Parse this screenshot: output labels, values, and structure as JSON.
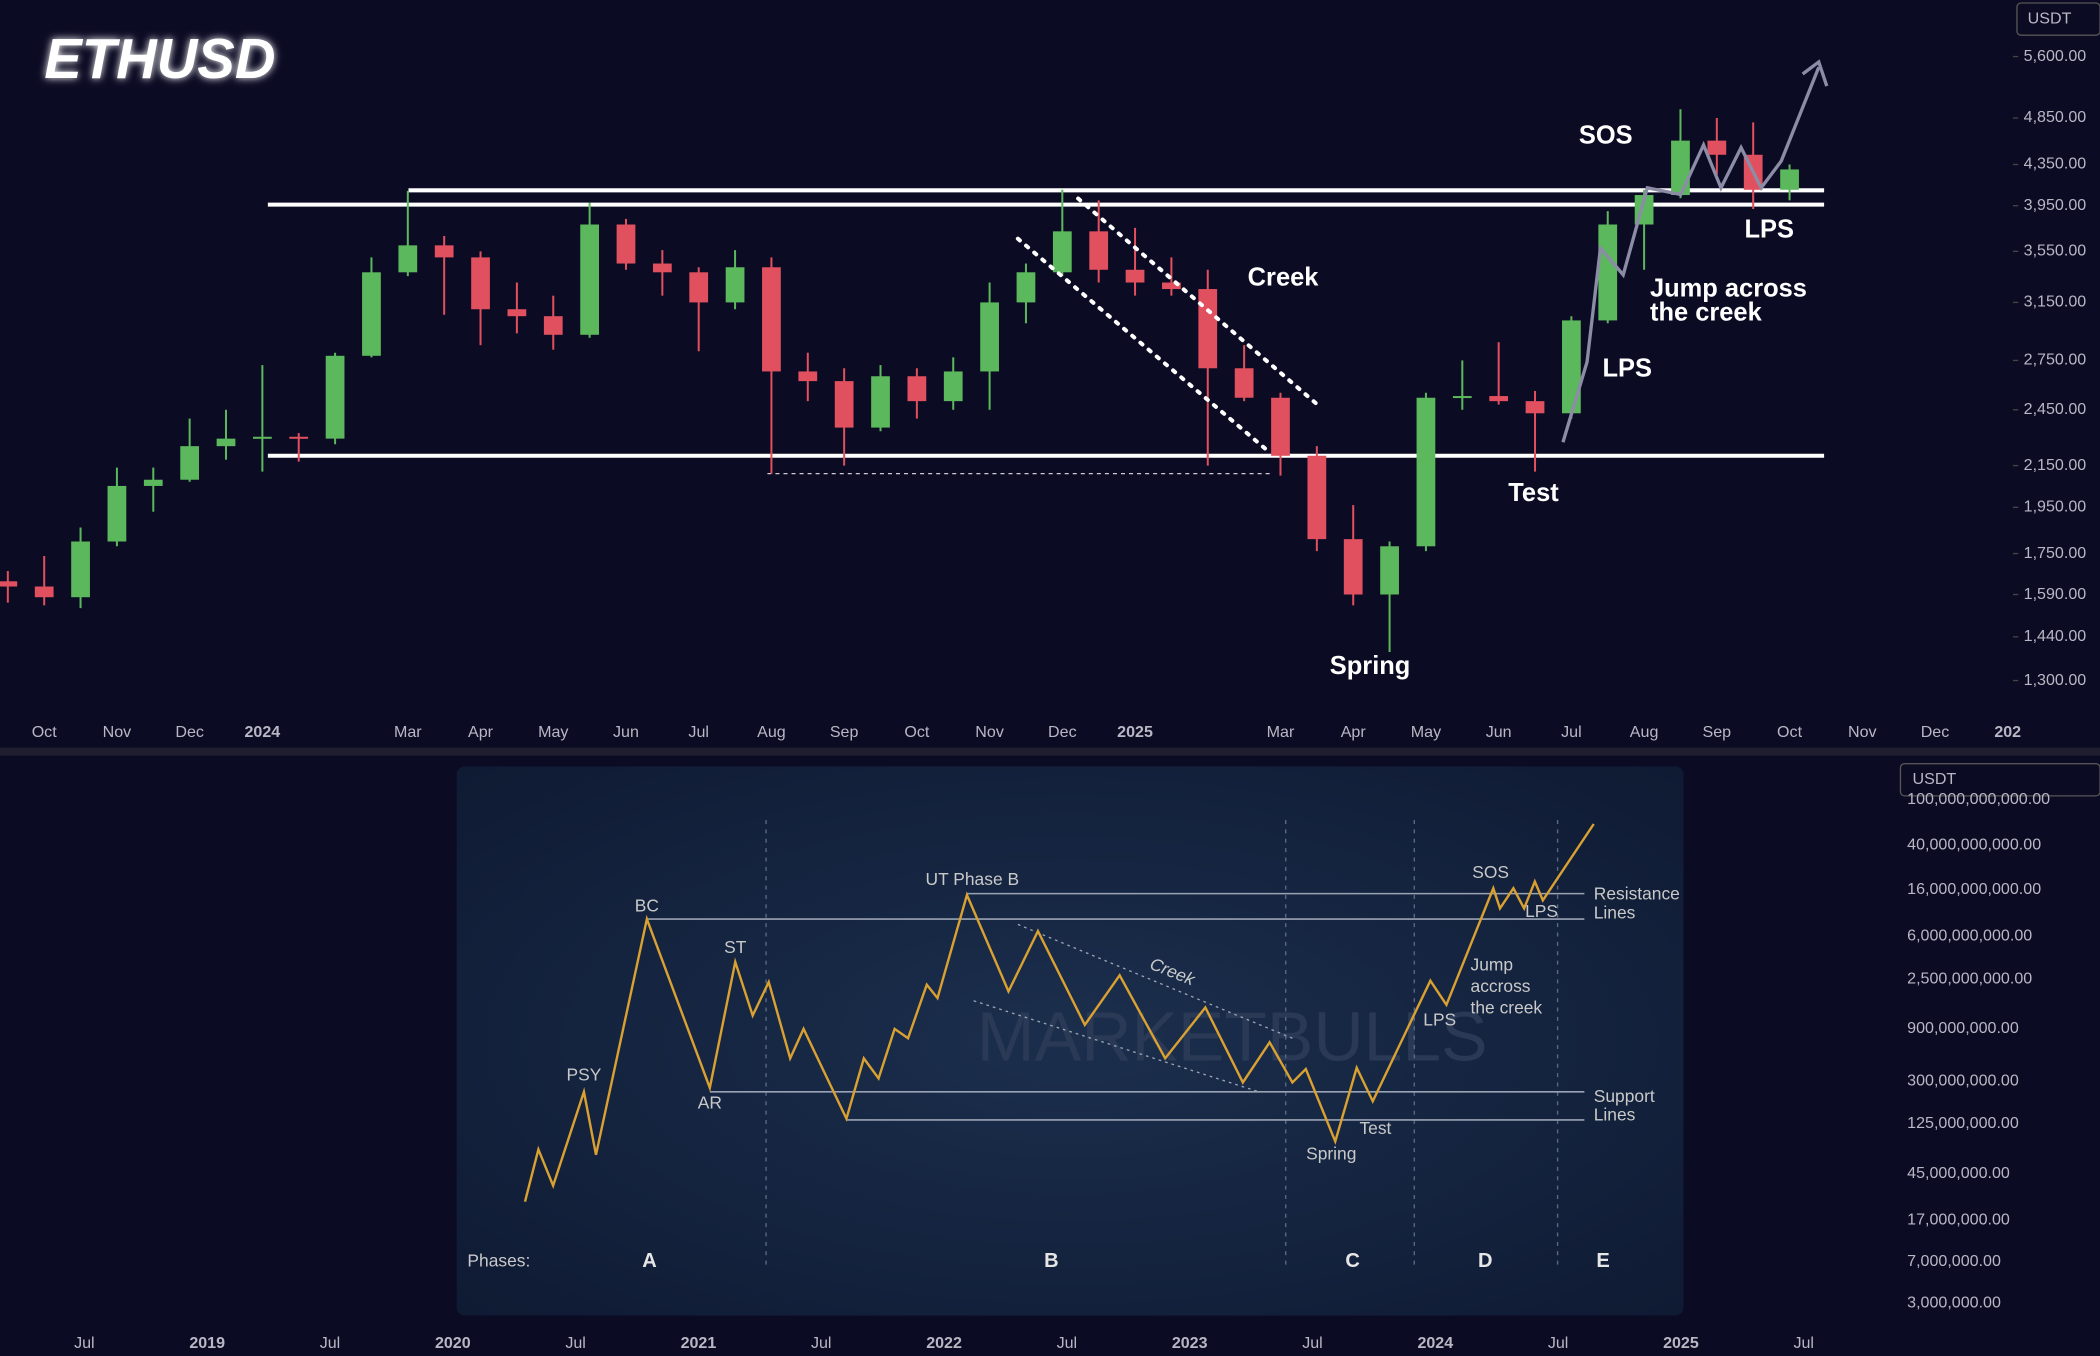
{
  "chart_data": {
    "type": "candlestick",
    "title": "ETHUSD",
    "currency": "USDT",
    "log_scale": true,
    "up_color": "#5cb85c",
    "down_color": "#e0505e",
    "open": [
      1640,
      1620,
      1580,
      1800,
      2050,
      2080,
      2250,
      2290,
      2300,
      2290,
      2780,
      3380,
      3600,
      3500,
      3100,
      3050,
      2920,
      3780,
      3450,
      3380,
      3150,
      3420,
      2680,
      2620,
      2350,
      2650,
      2500,
      2680,
      3150,
      3380,
      3720,
      3400,
      3300,
      3250,
      2700,
      2520,
      2200,
      1810,
      1590,
      1780,
      2520,
      2530,
      2500,
      2430,
      3020,
      3780,
      4050,
      4600,
      4450,
      4100
    ],
    "high": [
      1680,
      1740,
      1860,
      2140,
      2140,
      2400,
      2450,
      2720,
      2320,
      2800,
      3500,
      4090,
      3680,
      3550,
      3300,
      3200,
      3980,
      3830,
      3560,
      3420,
      3560,
      3500,
      2800,
      2700,
      2720,
      2700,
      2770,
      3300,
      3450,
      4100,
      4000,
      3750,
      3500,
      3400,
      2850,
      2550,
      2250,
      1960,
      1800,
      2550,
      2750,
      2870,
      2560,
      3050,
      3900,
      4100,
      4950,
      4850,
      4800,
      4350
    ],
    "low": [
      1560,
      1550,
      1540,
      1780,
      1930,
      2070,
      2180,
      2120,
      2170,
      2260,
      2770,
      3350,
      3060,
      2850,
      2930,
      2820,
      2900,
      3400,
      3200,
      2810,
      3100,
      2110,
      2500,
      2150,
      2330,
      2400,
      2450,
      2450,
      3000,
      3350,
      3300,
      3200,
      3200,
      2150,
      2500,
      2100,
      1760,
      1550,
      1390,
      1760,
      2450,
      2480,
      2120,
      2400,
      3000,
      3400,
      4020,
      4250,
      3920,
      4000
    ],
    "close": [
      1620,
      1580,
      1800,
      2050,
      2080,
      2250,
      2290,
      2300,
      2290,
      2780,
      3380,
      3600,
      3500,
      3100,
      3050,
      2920,
      3780,
      3450,
      3380,
      3150,
      3420,
      2680,
      2620,
      2350,
      2650,
      2500,
      2680,
      3150,
      3380,
      3720,
      3400,
      3300,
      3250,
      2700,
      2520,
      2200,
      1810,
      1590,
      1780,
      2520,
      2530,
      2500,
      2430,
      3020,
      3780,
      4050,
      4600,
      4450,
      4100,
      4300
    ],
    "ylim": [
      1213,
      6388
    ],
    "yticks": [
      {
        "value": 5600,
        "label": "5,600.00"
      },
      {
        "value": 4850,
        "label": "4,850.00"
      },
      {
        "value": 4350,
        "label": "4,350.00"
      },
      {
        "value": 3950,
        "label": "3,950.00"
      },
      {
        "value": 3550,
        "label": "3,550.00"
      },
      {
        "value": 3150,
        "label": "3,150.00"
      },
      {
        "value": 2750,
        "label": "2,750.00"
      },
      {
        "value": 2450,
        "label": "2,450.00"
      },
      {
        "value": 2150,
        "label": "2,150.00"
      },
      {
        "value": 1950,
        "label": "1,950.00"
      },
      {
        "value": 1750,
        "label": "1,750.00"
      },
      {
        "value": 1590,
        "label": "1,590.00"
      },
      {
        "value": 1440,
        "label": "1,440.00"
      },
      {
        "value": 1300,
        "label": "1,300.00"
      }
    ],
    "x_labels": [
      "Oct",
      "Nov",
      "Dec",
      "2024",
      null,
      "Mar",
      "Apr",
      "May",
      "Jun",
      "Jul",
      "Aug",
      "Sep",
      "Oct",
      "Nov",
      "Dec",
      "2025",
      null,
      "Mar",
      "Apr",
      "May",
      "Jun",
      "Jul",
      "Aug",
      "Sep",
      "Oct",
      "Nov",
      "Dec",
      "202"
    ],
    "levels": [
      4095,
      3960,
      2200,
      2110
    ],
    "annotations": [
      "SOS",
      "LPS",
      [
        "Jump across",
        "the creek"
      ],
      "LPS",
      "Test",
      "Spring",
      "Creek"
    ]
  },
  "lower_panel": {
    "currency": "USDT",
    "y_labels": [
      "100,000,000,000.00",
      "40,000,000,000.00",
      "16,000,000,000.00",
      "6,000,000,000.00",
      "2,500,000,000.00",
      "900,000,000.00",
      "300,000,000.00",
      "125,000,000.00",
      "45,000,000.00",
      "17,000,000.00",
      "7,000,000.00",
      "3,000,000.00"
    ],
    "x_labels": [
      "Jul",
      "2019",
      "Jul",
      "2020",
      "Jul",
      "2021",
      "Jul",
      "2022",
      "Jul",
      "2023",
      "Jul",
      "2024",
      "Jul",
      "2025",
      "Jul"
    ],
    "inset": {
      "watermark": "MARKETBULLS",
      "psy": "PSY",
      "bc": "BC",
      "ar": "AR",
      "st": "ST",
      "ut": "UT Phase B",
      "creek": "Creek",
      "sos": "SOS",
      "lps_top": "LPS",
      "jump": [
        "Jump",
        "accross",
        "the creek"
      ],
      "lps": "LPS",
      "test": "Test",
      "spring": "Spring",
      "resistance": [
        "Resistance",
        "Lines"
      ],
      "support": [
        "Support",
        "Lines"
      ],
      "phases": "Phases:",
      "phase_names": [
        "A",
        "B",
        "C",
        "D",
        "E"
      ]
    }
  }
}
